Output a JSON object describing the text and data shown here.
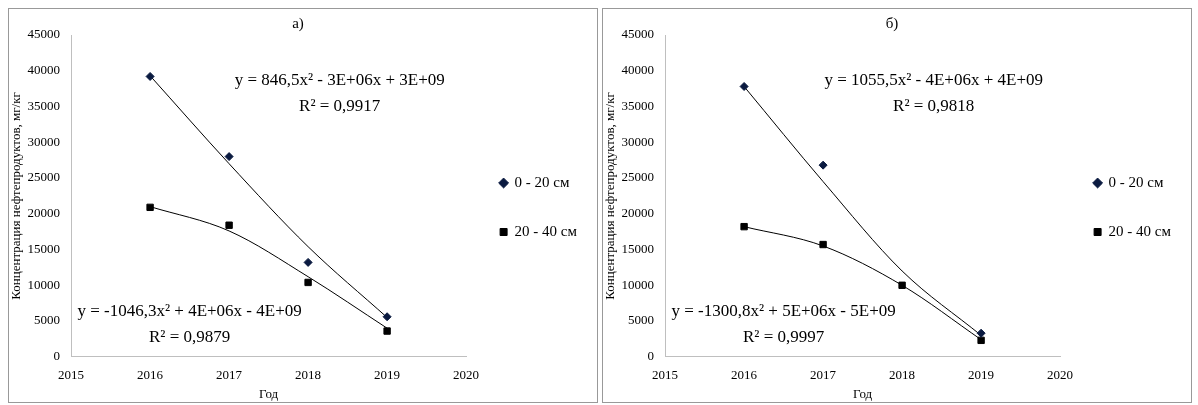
{
  "chart_data": [
    {
      "type": "scatter",
      "title": "а)",
      "xlabel": "Год",
      "ylabel": "Концентрация нефтепродуктов, мг/кг",
      "xlim": [
        2015,
        2020
      ],
      "xticks": [
        2015,
        2016,
        2017,
        2018,
        2019,
        2020
      ],
      "ylim": [
        0,
        45000
      ],
      "yticks": [
        0,
        5000,
        10000,
        15000,
        20000,
        25000,
        30000,
        35000,
        40000,
        45000
      ],
      "grid": false,
      "legend": "right",
      "x": [
        2016,
        2017,
        2018,
        2019
      ],
      "series": [
        {
          "name": "0 - 20 см",
          "type": "scatter",
          "marker": "diamond",
          "color": "#0a1a40",
          "values": [
            39200,
            28000,
            13200,
            5600
          ]
        },
        {
          "name": "20 - 40 см",
          "type": "scatter",
          "marker": "square",
          "color": "#000000",
          "values": [
            20900,
            18400,
            10400,
            3600
          ]
        },
        {
          "type": "line",
          "marker": "none",
          "color": "#000000",
          "x": [
            2016,
            2017,
            2018,
            2019
          ],
          "values": [
            39300,
            27000,
            15400,
            5500
          ]
        },
        {
          "type": "line",
          "marker": "none",
          "color": "#000000",
          "x": [
            2016,
            2017,
            2018,
            2019
          ],
          "values": [
            21000,
            17600,
            11200,
            4000
          ]
        }
      ],
      "annotations": [
        "y = 846,5x² - 3E+06x + 3E+09",
        "R² = 0,9917",
        "y = -1046,3x² + 4E+06x - 4E+09",
        "R² = 0,9879"
      ]
    },
    {
      "type": "scatter",
      "title": "б)",
      "xlabel": "Год",
      "ylabel": "Концентрация нефтепродуктов, мг/кг",
      "xlim": [
        2015,
        2020
      ],
      "xticks": [
        2015,
        2016,
        2017,
        2018,
        2019,
        2020
      ],
      "ylim": [
        0,
        45000
      ],
      "yticks": [
        0,
        5000,
        10000,
        15000,
        20000,
        25000,
        30000,
        35000,
        40000,
        45000
      ],
      "grid": false,
      "legend": "right",
      "x": [
        2016,
        2017,
        2018,
        2019
      ],
      "series": [
        {
          "name": "0 - 20 см",
          "type": "scatter",
          "marker": "diamond",
          "color": "#0a1a40",
          "values": [
            37800,
            26800,
            null,
            3300
          ]
        },
        {
          "name": "20 - 40 см",
          "type": "scatter",
          "marker": "square",
          "color": "#000000",
          "values": [
            18200,
            15700,
            10000,
            2300
          ]
        },
        {
          "type": "line",
          "marker": "none",
          "color": "#000000",
          "x": [
            2016,
            2017,
            2018,
            2019
          ],
          "values": [
            37800,
            24500,
            12000,
            3000
          ]
        },
        {
          "type": "line",
          "marker": "none",
          "color": "#000000",
          "x": [
            2016,
            2017,
            2018,
            2019
          ],
          "values": [
            18200,
            15500,
            10000,
            2400
          ]
        }
      ],
      "annotations": [
        "y = 1055,5x² - 4E+06x + 4E+09",
        "R² = 0,9818",
        "y = -1300,8x² + 5E+06x - 5E+09",
        "R² = 0,9997"
      ]
    }
  ]
}
